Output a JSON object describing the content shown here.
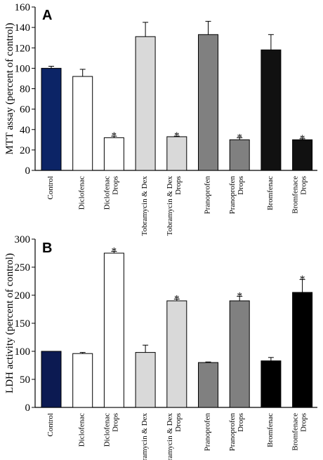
{
  "chart_data": [
    {
      "type": "bar",
      "panel_label": "A",
      "ylabel": "MTT assay (percent of control)",
      "ylim": [
        0,
        160
      ],
      "yticks": [
        0,
        20,
        40,
        60,
        80,
        100,
        120,
        140,
        160
      ],
      "grid": false,
      "legend": "none",
      "categories": [
        "Control",
        "Diclofenac",
        "Diclofenac Drops",
        "Tobramycin & Dex",
        "Tobramycin & Dex Drops",
        "Pranoprofen",
        "Pranoprofen Drops",
        "Bromfenac",
        "Bromfenace Drops"
      ],
      "category_label_lines": [
        [
          "Control"
        ],
        [
          "Diclofenac"
        ],
        [
          "Diclofenac",
          "Drops"
        ],
        [
          "Tobramycin & Dex"
        ],
        [
          "Tobramycin & Dex",
          "Drops"
        ],
        [
          "Pranoprofen"
        ],
        [
          "Pranoprofen",
          "Drops"
        ],
        [
          "Bromfenac"
        ],
        [
          "Bromfenace",
          "Drops"
        ]
      ],
      "values": [
        100,
        92,
        32,
        131,
        33,
        133,
        30,
        118,
        30
      ],
      "errors": [
        2,
        7,
        1.5,
        14,
        0.5,
        13,
        2,
        15,
        1
      ],
      "significance": [
        "",
        "",
        "*",
        "",
        "*",
        "",
        "*",
        "",
        "*"
      ],
      "colors": [
        "#0c2466",
        "#ffffff",
        "#ffffff",
        "#d9d9d9",
        "#d9d9d9",
        "#808080",
        "#808080",
        "#111111",
        "#111111"
      ]
    },
    {
      "type": "bar",
      "panel_label": "B",
      "ylabel": "LDH activity (percent of control)",
      "ylim": [
        0,
        300
      ],
      "yticks": [
        0,
        50,
        100,
        150,
        200,
        250,
        300
      ],
      "grid": false,
      "legend": "none",
      "categories": [
        "Control",
        "Diclofenac",
        "Diclofenac Drops",
        "Tobramycin & Dex",
        "Tobramycin & Dex Drops",
        "Pranoprofen",
        "Pranoprofen Drops",
        "Bromfenac",
        "Bromfenace Drops"
      ],
      "category_label_lines": [
        [
          "Control"
        ],
        [
          "Diclofenac"
        ],
        [
          "Diclofenac",
          "Drops"
        ],
        [
          "Tobramycin & Dex"
        ],
        [
          "Tobramycin & Dex",
          "Drops"
        ],
        [
          "Pranoprofen"
        ],
        [
          "Pranoprofen",
          "Drops"
        ],
        [
          "Bromfenac"
        ],
        [
          "Bromfenace",
          "Drops"
        ]
      ],
      "values": [
        100,
        96,
        275,
        98,
        190,
        80,
        190,
        83,
        205
      ],
      "errors": [
        0,
        2,
        3,
        13,
        3,
        1,
        8,
        6,
        23
      ],
      "significance": [
        "",
        "",
        "*",
        "",
        "*",
        "",
        "*",
        "",
        "*"
      ],
      "colors": [
        "#0c1a52",
        "#ffffff",
        "#ffffff",
        "#d9d9d9",
        "#d9d9d9",
        "#808080",
        "#808080",
        "#000000",
        "#000000"
      ]
    }
  ]
}
